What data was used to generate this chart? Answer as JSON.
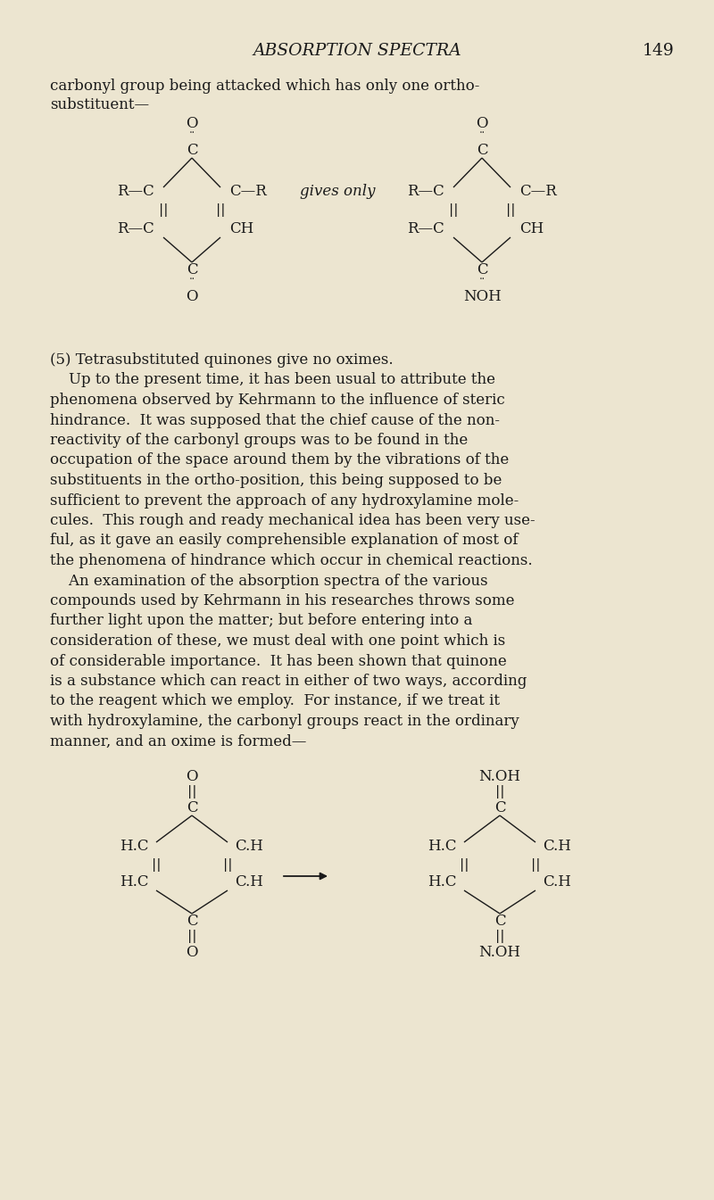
{
  "background_color": "#ece5d0",
  "text_color": "#1a1a1a",
  "page_width": 8.0,
  "page_height": 13.45,
  "body_lines": [
    "(5) Tetrasubstituted quinones give no oximes.",
    "    Up to the present time, it has been usual to attribute the",
    "phenomena observed by Kehrmann to the influence of steric",
    "hindrance.  It was supposed that the chief cause of the non-",
    "reactivity of the carbonyl groups was to be found in the",
    "occupation of the space around them by the vibrations of the",
    "substituents in the ortho-position, this being supposed to be",
    "sufficient to prevent the approach of any hydroxylamine mole-",
    "cules.  This rough and ready mechanical idea has been very use-",
    "ful, as it gave an easily comprehensible explanation of most of",
    "the phenomena of hindrance which occur in chemical reactions.",
    "    An examination of the absorption spectra of the various",
    "compounds used by Kehrmann in his researches throws some",
    "further light upon the matter; but before entering into a",
    "consideration of these, we must deal with one point which is",
    "of considerable importance.  It has been shown that quinone",
    "is a substance which can react in either of two ways, according",
    "to the reagent which we employ.  For instance, if we treat it",
    "with hydroxylamine, the carbonyl groups react in the ordinary",
    "manner, and an oxime is formed—"
  ]
}
